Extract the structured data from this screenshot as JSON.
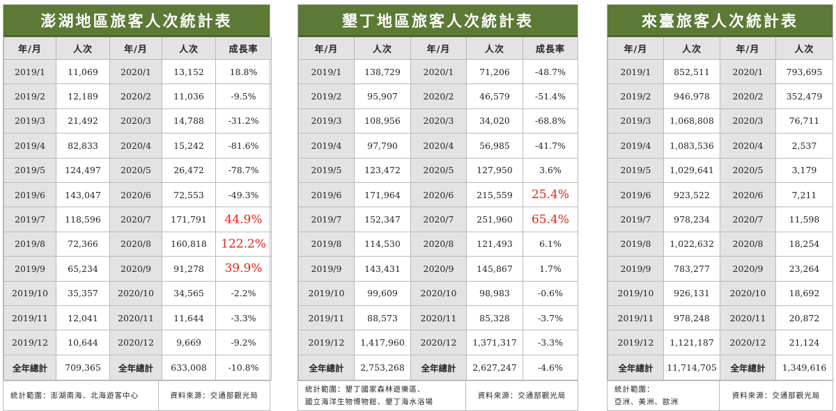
{
  "tables": [
    {
      "title": "澎湖地區旅客人次統計表",
      "headers": [
        "年/月",
        "人次",
        "年/月",
        "人次",
        "成長率"
      ],
      "rows": [
        {
          "m1": "2019/1",
          "v1": "11,069",
          "m2": "2020/1",
          "v2": "13,152",
          "g": "18.8%"
        },
        {
          "m1": "2019/2",
          "v1": "12,189",
          "m2": "2020/2",
          "v2": "11,036",
          "g": "-9.5%"
        },
        {
          "m1": "2019/3",
          "v1": "21,492",
          "m2": "2020/3",
          "v2": "14,788",
          "g": "-31.2%"
        },
        {
          "m1": "2019/4",
          "v1": "82,833",
          "m2": "2020/4",
          "v2": "15,242",
          "g": "-81.6%"
        },
        {
          "m1": "2019/5",
          "v1": "124,497",
          "m2": "2020/5",
          "v2": "26,472",
          "g": "-78.7%"
        },
        {
          "m1": "2019/6",
          "v1": "143,047",
          "m2": "2020/6",
          "v2": "72,553",
          "g": "-49.3%"
        },
        {
          "m1": "2019/7",
          "v1": "118,596",
          "m2": "2020/7",
          "v2": "171,791",
          "g": "44.9%",
          "hl": true
        },
        {
          "m1": "2019/8",
          "v1": "72,366",
          "m2": "2020/8",
          "v2": "160,818",
          "g": "122.2%",
          "hl": true
        },
        {
          "m1": "2019/9",
          "v1": "65,234",
          "m2": "2020/9",
          "v2": "91,278",
          "g": "39.9%",
          "hl": true
        },
        {
          "m1": "2019/10",
          "v1": "35,357",
          "m2": "2020/10",
          "v2": "34,565",
          "g": "-2.2%"
        },
        {
          "m1": "2019/11",
          "v1": "12,041",
          "m2": "2020/11",
          "v2": "11,644",
          "g": "-3.3%"
        },
        {
          "m1": "2019/12",
          "v1": "10,644",
          "m2": "2020/12",
          "v2": "9,669",
          "g": "-9.2%"
        }
      ],
      "total": {
        "m1": "全年總計",
        "v1": "709,365",
        "m2": "全年總計",
        "v2": "633,008",
        "g": "-10.8%"
      },
      "scope": [
        "統計範圍：澎湖南海、北海遊客中心"
      ],
      "source": "資料來源：交通部觀光局"
    },
    {
      "title": "墾丁地區旅客人次統計表",
      "headers": [
        "年/月",
        "人次",
        "年/月",
        "人次",
        "成長率"
      ],
      "rows": [
        {
          "m1": "2019/1",
          "v1": "138,729",
          "m2": "2020/1",
          "v2": "71,206",
          "g": "-48.7%"
        },
        {
          "m1": "2019/2",
          "v1": "95,907",
          "m2": "2020/2",
          "v2": "46,579",
          "g": "-51.4%"
        },
        {
          "m1": "2019/3",
          "v1": "108,956",
          "m2": "2020/3",
          "v2": "34,020",
          "g": "-68.8%"
        },
        {
          "m1": "2019/4",
          "v1": "97,790",
          "m2": "2020/4",
          "v2": "56,985",
          "g": "-41.7%"
        },
        {
          "m1": "2019/5",
          "v1": "123,472",
          "m2": "2020/5",
          "v2": "127,950",
          "g": "3.6%"
        },
        {
          "m1": "2019/6",
          "v1": "171,964",
          "m2": "2020/6",
          "v2": "215,559",
          "g": "25.4%",
          "hl": true
        },
        {
          "m1": "2019/7",
          "v1": "152,347",
          "m2": "2020/7",
          "v2": "251,960",
          "g": "65.4%",
          "hl": true
        },
        {
          "m1": "2019/8",
          "v1": "114,530",
          "m2": "2020/8",
          "v2": "121,493",
          "g": "6.1%"
        },
        {
          "m1": "2019/9",
          "v1": "143,431",
          "m2": "2020/9",
          "v2": "145,867",
          "g": "1.7%"
        },
        {
          "m1": "2019/10",
          "v1": "99,609",
          "m2": "2020/10",
          "v2": "98,983",
          "g": "-0.6%"
        },
        {
          "m1": "2019/11",
          "v1": "88,573",
          "m2": "2020/11",
          "v2": "85,328",
          "g": "-3.7%"
        },
        {
          "m1": "2019/12",
          "v1": "1,417,960",
          "m2": "2020/12",
          "v2": "1,371,317",
          "g": "-3.3%"
        }
      ],
      "total": {
        "m1": "全年總計",
        "v1": "2,753,268",
        "m2": "全年總計",
        "v2": "2,627,247",
        "g": "-4.6%"
      },
      "scope": [
        "統計範圍：墾丁國家森林遊樂區、",
        "國立海洋生物博物館、墾丁海水浴場"
      ],
      "source": "資料來源：交通部觀光局"
    },
    {
      "title": "來臺旅客人次統計表",
      "headers": [
        "年/月",
        "人次",
        "年/月",
        "人次"
      ],
      "rows": [
        {
          "m1": "2019/1",
          "v1": "852,511",
          "m2": "2020/1",
          "v2": "793,695"
        },
        {
          "m1": "2019/2",
          "v1": "946,978",
          "m2": "2020/2",
          "v2": "352,479"
        },
        {
          "m1": "2019/3",
          "v1": "1,068,808",
          "m2": "2020/3",
          "v2": "76,711"
        },
        {
          "m1": "2019/4",
          "v1": "1,083,536",
          "m2": "2020/4",
          "v2": "2,537"
        },
        {
          "m1": "2019/5",
          "v1": "1,029,641",
          "m2": "2020/5",
          "v2": "3,179"
        },
        {
          "m1": "2019/6",
          "v1": "923,522",
          "m2": "2020/6",
          "v2": "7,211"
        },
        {
          "m1": "2019/7",
          "v1": "978,234",
          "m2": "2020/7",
          "v2": "11,598"
        },
        {
          "m1": "2019/8",
          "v1": "1,022,632",
          "m2": "2020/8",
          "v2": "18,254"
        },
        {
          "m1": "2019/9",
          "v1": "783,277",
          "m2": "2020/9",
          "v2": "23,264"
        },
        {
          "m1": "2019/10",
          "v1": "926,131",
          "m2": "2020/10",
          "v2": "18,692"
        },
        {
          "m1": "2019/11",
          "v1": "978,248",
          "m2": "2020/11",
          "v2": "20,872"
        },
        {
          "m1": "2019/12",
          "v1": "1,121,187",
          "m2": "2020/12",
          "v2": "21,124"
        }
      ],
      "total": {
        "m1": "全年總計",
        "v1": "11,714,705",
        "m2": "全年總計",
        "v2": "1,349,616"
      },
      "scope": [
        "統計範圍：",
        "亞洲、美洲、歐洲"
      ],
      "source": "資料來源：交通部觀光局"
    }
  ],
  "colors": {
    "header_green": "#5c7a36",
    "highlight_red": "#e0261b",
    "label_gray": "#e3e3e3"
  }
}
